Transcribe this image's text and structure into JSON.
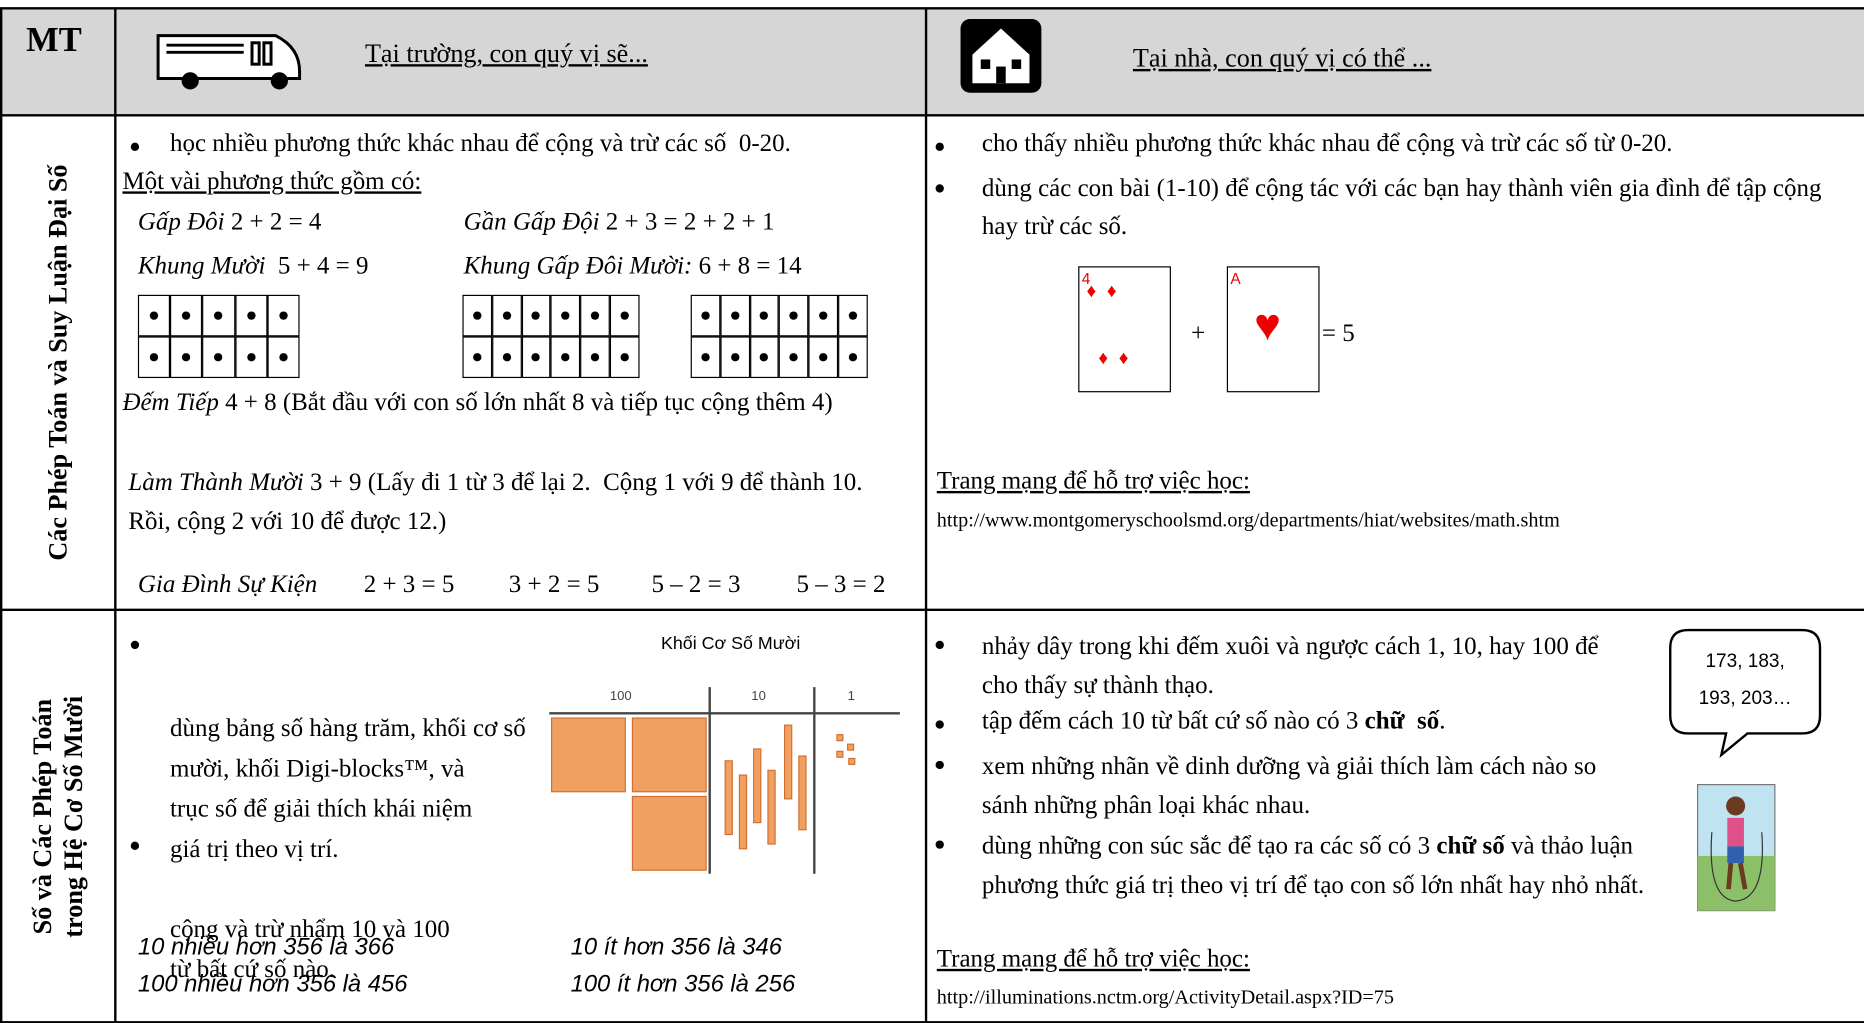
{
  "header": {
    "label": "MT",
    "school": "Tại trường, con quý vị sẽ...",
    "home": "Tại nhà, con quý vị có thể ..."
  },
  "rows": [
    {
      "label": "Các Phép Toán và Suy Luận Đại Số",
      "school": {
        "bullet": "học nhiều phương thức khác nhau để cộng và trừ các số  0-20.",
        "intro": "Một vài phương thức gồm có:",
        "strategies": [
          {
            "name": "Gấp Đôi",
            "example": "2 + 2 = 4"
          },
          {
            "name": "Gần Gấp Đội",
            "example": "2 + 3 = 2 + 2 + 1"
          },
          {
            "name": "Khung Mười",
            "example": "5 + 4 = 9"
          },
          {
            "name": "Khung Gấp Đôi Mười:",
            "example": "6 + 8 = 14"
          },
          {
            "name": "Đếm Tiếp",
            "example": "4 + 8 (Bắt đầu với con số lớn nhất 8 và tiếp tục cộng thêm 4)"
          },
          {
            "name": "Làm Thành Mười",
            "example": "3 + 9 (Lấy đi 1 từ 3 để lại 2.  Cộng 1 với 9 để thành 10.  Rồi, cộng 2 với 10 để được 12.)"
          },
          {
            "name": "Gia Đình Sự Kiện",
            "examples": [
              "2 + 3 = 5",
              "3 + 2 = 5",
              "5 – 2 = 3",
              "5 – 3 = 2"
            ]
          }
        ]
      },
      "home": {
        "bullets": [
          "cho thấy nhiều phương thức khác nhau để cộng và trừ các số từ 0-20.",
          "dùng các con bài (1-10) để cộng tác với các bạn hay thành viên gia đình để tập cộng hay trừ các số."
        ],
        "cards": [
          "4",
          "A"
        ],
        "operator": "+",
        "result": "= 5",
        "websites_label": "Trang mạng để hỗ trợ việc học:",
        "url": "http://www.montgomeryschoolsmd.org/departments/hiat/websites/math.shtm"
      }
    },
    {
      "label": "Số và Các Phép Toán trong Hệ Cơ Số Mười",
      "school": {
        "bullets": [
          [
            "dùng bảng số hàng trăm, khối cơ số",
            "mười, khối Digi-blocks™, và",
            "trục số để giải thích khái niệm",
            "giá trị theo vị trí."
          ],
          [
            "cộng và trừ nhẩm 10 và 100",
            "từ bất cứ số nào."
          ]
        ],
        "figure": {
          "caption": "Khối Cơ Số Mười",
          "labels": [
            "100",
            "10",
            "1"
          ]
        },
        "examples": [
          "10 nhiều hơn 356 là 366",
          "100 nhiều hơn 356 là 456",
          "10 ít hơn 356 là 346",
          "100 ít hơn 356 là 256"
        ]
      },
      "home": {
        "bullets": [
          "nhảy dây trong khi đếm xuôi và ngược cách 1, 10, hay 100 để cho thấy sự thành thạo.",
          {
            "before": "tập đếm cách 10 từ bất cứ số nào có 3 ",
            "bold": "chữ  số",
            "after": "."
          },
          "xem những nhãn về dinh dưỡng và giải thích làm cách nào so sánh những phân loại khác nhau.",
          {
            "before": "dùng những con súc sắc để tạo ra các số có 3 ",
            "bold": "chữ số",
            "after": " và thảo luận phương thức giá trị theo vị trí để tạo con số lớn nhất hay nhỏ nhất."
          }
        ],
        "bubble": "173, 183, 193, 203…",
        "websites_label": "Trang mạng để hỗ trợ việc học:",
        "url": "http://illuminations.nctm.org/ActivityDetail.aspx?ID=75"
      }
    }
  ]
}
